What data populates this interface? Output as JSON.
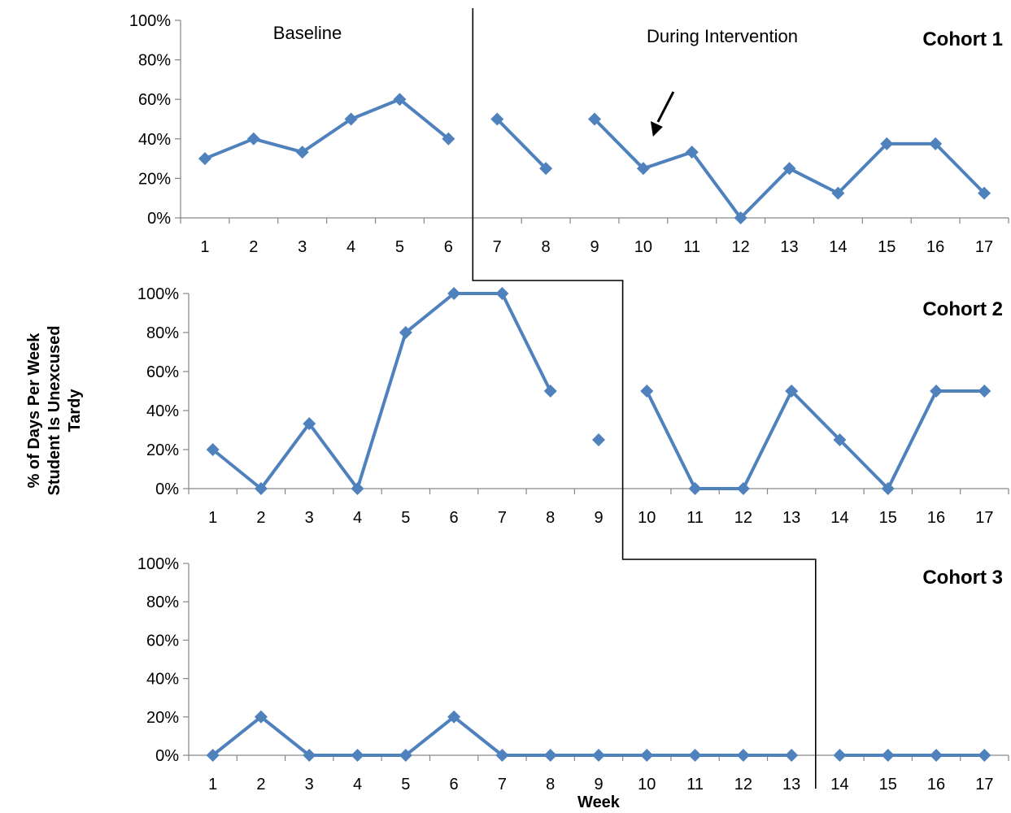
{
  "chart_data": {
    "type": "line",
    "ylabel_lines": [
      "% of Days Per Week",
      "Student Is Unexcused",
      "Tardy"
    ],
    "xlabel": "Week",
    "phase_labels": [
      "Baseline",
      "During Intervention"
    ],
    "series_color": "#4f81bd",
    "y_ticks": [
      "0%",
      "20%",
      "40%",
      "60%",
      "80%",
      "100%"
    ],
    "ylim": [
      0,
      100
    ],
    "panels": [
      {
        "title": "Cohort 1",
        "x": [
          1,
          2,
          3,
          4,
          5,
          6,
          7,
          8,
          9,
          10,
          11,
          12,
          13,
          14,
          15,
          16,
          17
        ],
        "values": [
          30,
          40,
          33.3,
          50,
          60,
          40,
          50,
          25,
          50,
          25,
          33.3,
          0,
          25,
          12.5,
          37.5,
          37.5,
          12.5
        ],
        "segments": [
          [
            1,
            6
          ],
          [
            7,
            8
          ],
          [
            9,
            17
          ]
        ],
        "phase_change_after_week": 6,
        "annotation_arrow_week": 10
      },
      {
        "title": "Cohort 2",
        "x": [
          1,
          2,
          3,
          4,
          5,
          6,
          7,
          8,
          9,
          10,
          11,
          12,
          13,
          14,
          15,
          16,
          17
        ],
        "values": [
          20,
          0,
          33.3,
          0,
          80,
          100,
          100,
          50,
          25,
          50,
          0,
          0,
          50,
          25,
          0,
          50,
          50
        ],
        "segments": [
          [
            1,
            8
          ],
          [
            9,
            9
          ],
          [
            10,
            17
          ]
        ],
        "phase_change_after_week": 9
      },
      {
        "title": "Cohort 3",
        "x": [
          1,
          2,
          3,
          4,
          5,
          6,
          7,
          8,
          9,
          10,
          11,
          12,
          13,
          14,
          15,
          16,
          17
        ],
        "values": [
          0,
          20,
          0,
          0,
          0,
          20,
          0,
          0,
          0,
          0,
          0,
          0,
          0,
          0,
          0,
          0,
          0
        ],
        "segments": [
          [
            1,
            13
          ],
          [
            14,
            17
          ]
        ],
        "phase_change_after_week": 13
      }
    ]
  }
}
